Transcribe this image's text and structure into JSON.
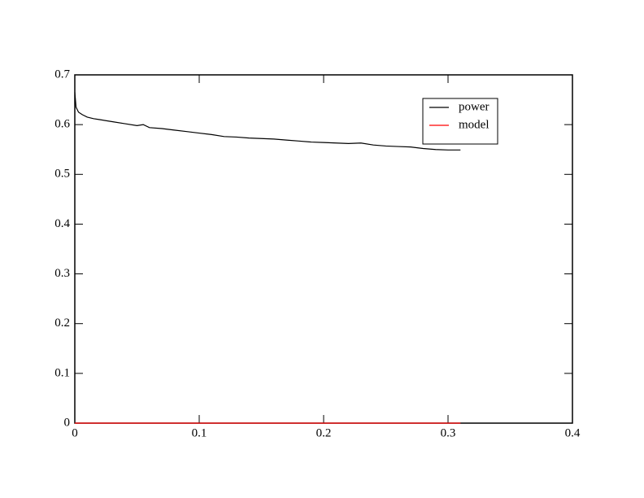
{
  "chart_data": {
    "type": "line",
    "series": [
      {
        "name": "power",
        "color": "#000000",
        "x": [
          0,
          0.001,
          0.003,
          0.006,
          0.01,
          0.015,
          0.02,
          0.03,
          0.04,
          0.05,
          0.055,
          0.06,
          0.07,
          0.08,
          0.09,
          0.1,
          0.11,
          0.12,
          0.13,
          0.14,
          0.15,
          0.16,
          0.17,
          0.18,
          0.19,
          0.2,
          0.21,
          0.22,
          0.23,
          0.24,
          0.25,
          0.26,
          0.27,
          0.28,
          0.29,
          0.3,
          0.31
        ],
        "values": [
          0.665,
          0.635,
          0.625,
          0.62,
          0.615,
          0.612,
          0.61,
          0.606,
          0.602,
          0.598,
          0.6,
          0.594,
          0.592,
          0.589,
          0.586,
          0.583,
          0.58,
          0.576,
          0.575,
          0.573,
          0.572,
          0.571,
          0.569,
          0.567,
          0.565,
          0.564,
          0.563,
          0.562,
          0.563,
          0.559,
          0.557,
          0.556,
          0.555,
          0.552,
          0.55,
          0.549,
          0.549
        ]
      },
      {
        "name": "model",
        "color": "#ff0000",
        "x": [
          0,
          0.31
        ],
        "values": [
          0,
          0
        ]
      }
    ],
    "xlim": [
      0,
      0.4
    ],
    "xticks": [
      0,
      0.1,
      0.2,
      0.3,
      0.4
    ],
    "ylim": [
      0,
      0.7
    ],
    "yticks": [
      0,
      0.1,
      0.2,
      0.3,
      0.4,
      0.5,
      0.6,
      0.7
    ],
    "legend": "upper right"
  }
}
